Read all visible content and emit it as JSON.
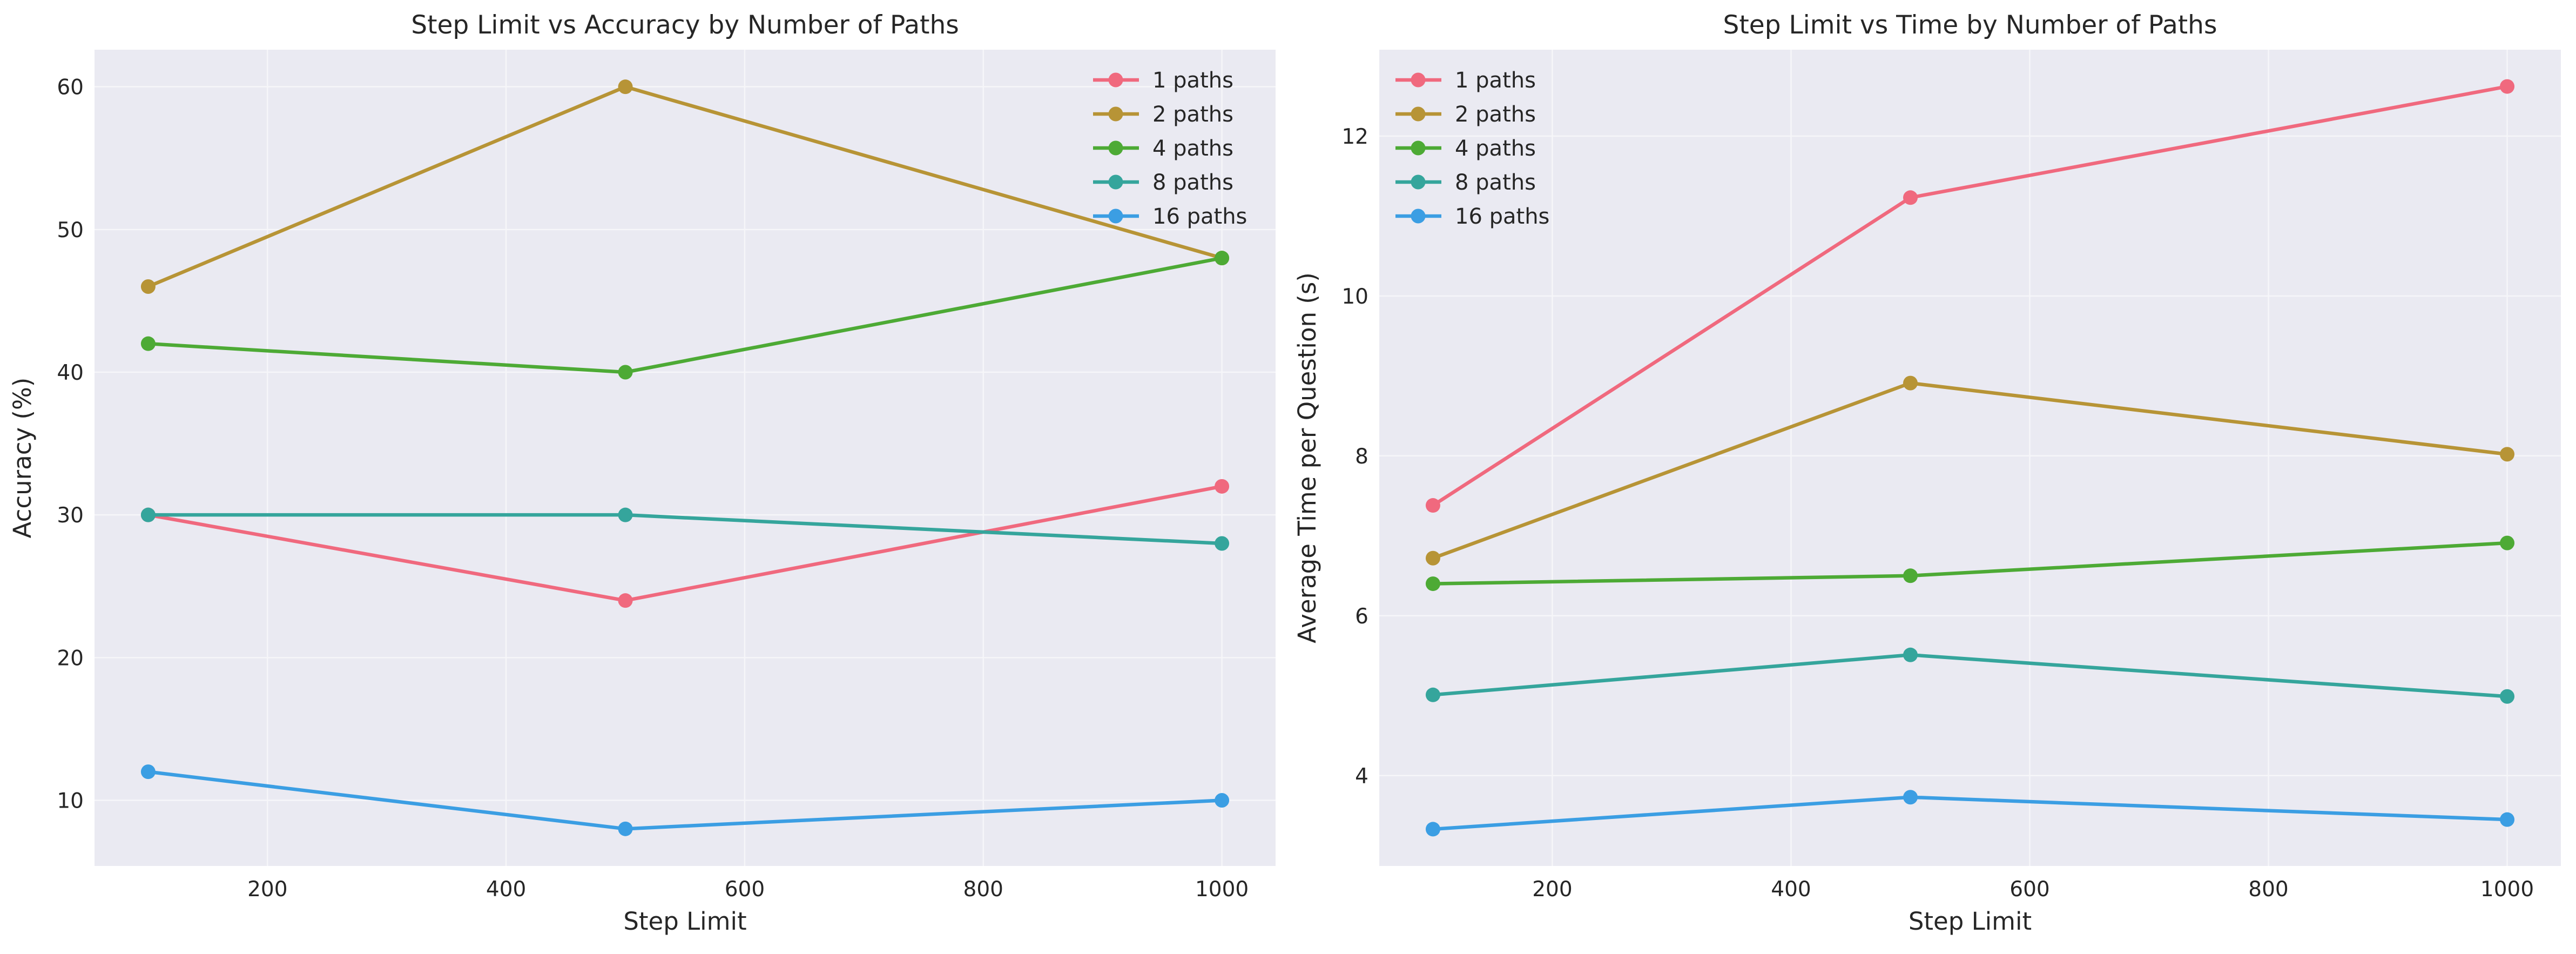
{
  "chart_data": [
    {
      "type": "line",
      "title": "Step Limit vs Accuracy by Number of Paths",
      "xlabel": "Step Limit",
      "ylabel": "Accuracy (%)",
      "x": [
        100,
        500,
        1000
      ],
      "xlim": [
        55,
        1045
      ],
      "ylim": [
        5.4,
        62.6
      ],
      "xticks": [
        200,
        400,
        600,
        800,
        1000
      ],
      "yticks": [
        10,
        20,
        30,
        40,
        50,
        60
      ],
      "grid": true,
      "legend_position": "upper-right",
      "series": [
        {
          "name": "1 paths",
          "color": "#f0697e",
          "values": [
            30,
            24,
            32
          ]
        },
        {
          "name": "2 paths",
          "color": "#b79436",
          "values": [
            46,
            60,
            48
          ]
        },
        {
          "name": "4 paths",
          "color": "#4daa35",
          "values": [
            42,
            40,
            48
          ]
        },
        {
          "name": "8 paths",
          "color": "#35a59c",
          "values": [
            30,
            30,
            28
          ]
        },
        {
          "name": "16 paths",
          "color": "#3b9ee3",
          "values": [
            12,
            8,
            10
          ]
        }
      ]
    },
    {
      "type": "line",
      "title": "Step Limit vs Time by Number of Paths",
      "xlabel": "Step Limit",
      "ylabel": "Average Time per Question (s)",
      "x": [
        100,
        500,
        1000
      ],
      "xlim": [
        55,
        1045
      ],
      "ylim": [
        2.87,
        13.08
      ],
      "xticks": [
        200,
        400,
        600,
        800,
        1000
      ],
      "yticks": [
        4,
        6,
        8,
        10,
        12
      ],
      "grid": true,
      "legend_position": "upper-left",
      "series": [
        {
          "name": "1 paths",
          "color": "#f0697e",
          "values": [
            7.38,
            11.23,
            12.62
          ]
        },
        {
          "name": "2 paths",
          "color": "#b79436",
          "values": [
            6.72,
            8.91,
            8.02
          ]
        },
        {
          "name": "4 paths",
          "color": "#4daa35",
          "values": [
            6.4,
            6.5,
            6.91
          ]
        },
        {
          "name": "8 paths",
          "color": "#35a59c",
          "values": [
            5.01,
            5.51,
            4.99
          ]
        },
        {
          "name": "16 paths",
          "color": "#3b9ee3",
          "values": [
            3.33,
            3.73,
            3.45
          ]
        }
      ]
    }
  ],
  "style": {
    "plot_background": "#eaeaf2",
    "grid_color": "#f6f6f9",
    "text_color": "#262626"
  }
}
